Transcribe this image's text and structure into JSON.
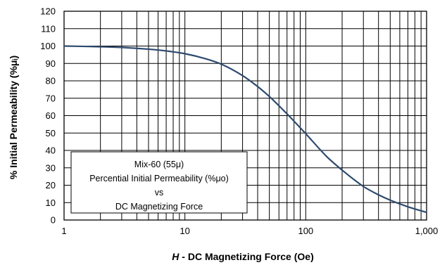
{
  "chart_data": {
    "type": "line",
    "title": "",
    "xlabel_italic": "H",
    "xlabel_rest": " - DC Magnetizing Force (Oe)",
    "ylabel": "% Initial Permeability (%μᵢ)",
    "xscale": "log",
    "xlim": [
      1,
      1000
    ],
    "ylim": [
      0,
      120
    ],
    "x_ticks": [
      1,
      10,
      100,
      1000
    ],
    "x_tick_labels": [
      "1",
      "10",
      "100",
      "1,000"
    ],
    "y_ticks": [
      0,
      10,
      20,
      30,
      40,
      50,
      60,
      70,
      80,
      90,
      100,
      110,
      120
    ],
    "y_tick_labels": [
      "0",
      "10",
      "20",
      "30",
      "40",
      "50",
      "60",
      "70",
      "80",
      "90",
      "100",
      "110",
      "120"
    ],
    "grid": true,
    "line_color": "#2e4a6e",
    "legend_lines": [
      "Mix-60  (55μ)",
      "Percential Initial Permeability (%μo)",
      "vs",
      "DC Magnetizing Force"
    ],
    "legend_placement": "lower-left",
    "series": [
      {
        "x": [
          1,
          2,
          3,
          5,
          7,
          10,
          15,
          20,
          30,
          40,
          50,
          70,
          100,
          150,
          200,
          300,
          400,
          500,
          700,
          1000
        ],
        "values": [
          100,
          99.6,
          99.2,
          98.2,
          97.2,
          95.6,
          92.6,
          89.6,
          83.0,
          76.7,
          71.0,
          61.0,
          49.6,
          36.3,
          28.7,
          19.3,
          14.5,
          11.4,
          7.6,
          4.4
        ]
      }
    ]
  }
}
